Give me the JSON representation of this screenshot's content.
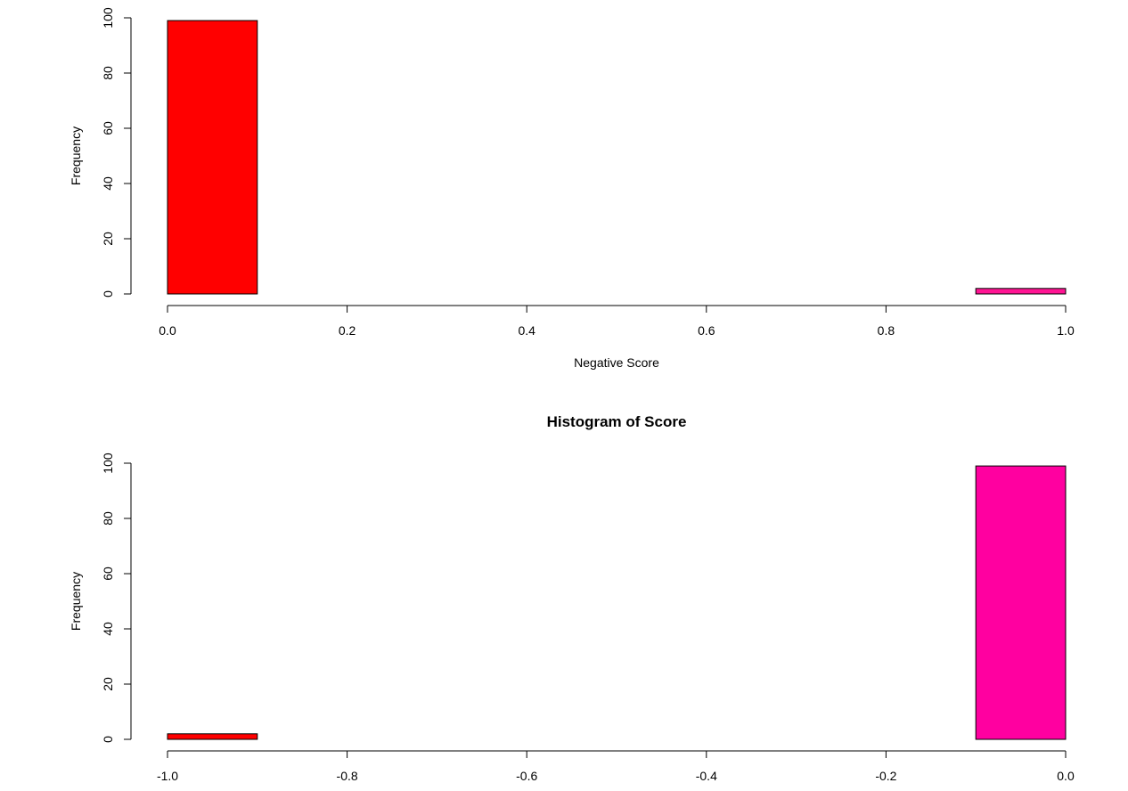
{
  "chart_data": [
    {
      "type": "bar",
      "title": "",
      "xlabel": "Negative Score",
      "ylabel": "Frequency",
      "xlim": [
        0.0,
        1.0
      ],
      "ylim": [
        0,
        100
      ],
      "x_ticks": [
        "0.0",
        "0.2",
        "0.4",
        "0.6",
        "0.8",
        "1.0"
      ],
      "y_ticks": [
        "0",
        "20",
        "40",
        "60",
        "80",
        "100"
      ],
      "grid": false,
      "bins": [
        {
          "x0": 0.0,
          "x1": 0.1,
          "value": 99,
          "color": "#ff0000"
        },
        {
          "x0": 0.1,
          "x1": 0.2,
          "value": 0,
          "color": "#ff0000"
        },
        {
          "x0": 0.2,
          "x1": 0.3,
          "value": 0,
          "color": "#ff0000"
        },
        {
          "x0": 0.3,
          "x1": 0.4,
          "value": 0,
          "color": "#ff0000"
        },
        {
          "x0": 0.4,
          "x1": 0.5,
          "value": 0,
          "color": "#ff0000"
        },
        {
          "x0": 0.5,
          "x1": 0.6,
          "value": 0,
          "color": "#ff0000"
        },
        {
          "x0": 0.6,
          "x1": 0.7,
          "value": 0,
          "color": "#ff0000"
        },
        {
          "x0": 0.7,
          "x1": 0.8,
          "value": 0,
          "color": "#ff0000"
        },
        {
          "x0": 0.8,
          "x1": 0.9,
          "value": 0,
          "color": "#ff0000"
        },
        {
          "x0": 0.9,
          "x1": 1.0,
          "value": 2,
          "color": "#ff1493"
        }
      ]
    },
    {
      "type": "bar",
      "title": "Histogram of Score",
      "xlabel": "",
      "ylabel": "Frequency",
      "xlim": [
        -1.0,
        0.0
      ],
      "ylim": [
        0,
        100
      ],
      "x_ticks": [
        "-1.0",
        "-0.8",
        "-0.6",
        "-0.4",
        "-0.2",
        "0.0"
      ],
      "y_ticks": [
        "0",
        "20",
        "40",
        "60",
        "80",
        "100"
      ],
      "grid": false,
      "bins": [
        {
          "x0": -1.0,
          "x1": -0.9,
          "value": 2,
          "color": "#ff0000"
        },
        {
          "x0": -0.9,
          "x1": -0.8,
          "value": 0,
          "color": "#ff0000"
        },
        {
          "x0": -0.8,
          "x1": -0.7,
          "value": 0,
          "color": "#ff0000"
        },
        {
          "x0": -0.7,
          "x1": -0.6,
          "value": 0,
          "color": "#ff0000"
        },
        {
          "x0": -0.6,
          "x1": -0.5,
          "value": 0,
          "color": "#ff0000"
        },
        {
          "x0": -0.5,
          "x1": -0.4,
          "value": 0,
          "color": "#ff0000"
        },
        {
          "x0": -0.4,
          "x1": -0.3,
          "value": 0,
          "color": "#ff0000"
        },
        {
          "x0": -0.3,
          "x1": -0.2,
          "value": 0,
          "color": "#ff0000"
        },
        {
          "x0": -0.2,
          "x1": -0.1,
          "value": 0,
          "color": "#ff0000"
        },
        {
          "x0": -0.1,
          "x1": 0.0,
          "value": 99,
          "color": "#ff00a0"
        }
      ]
    }
  ]
}
